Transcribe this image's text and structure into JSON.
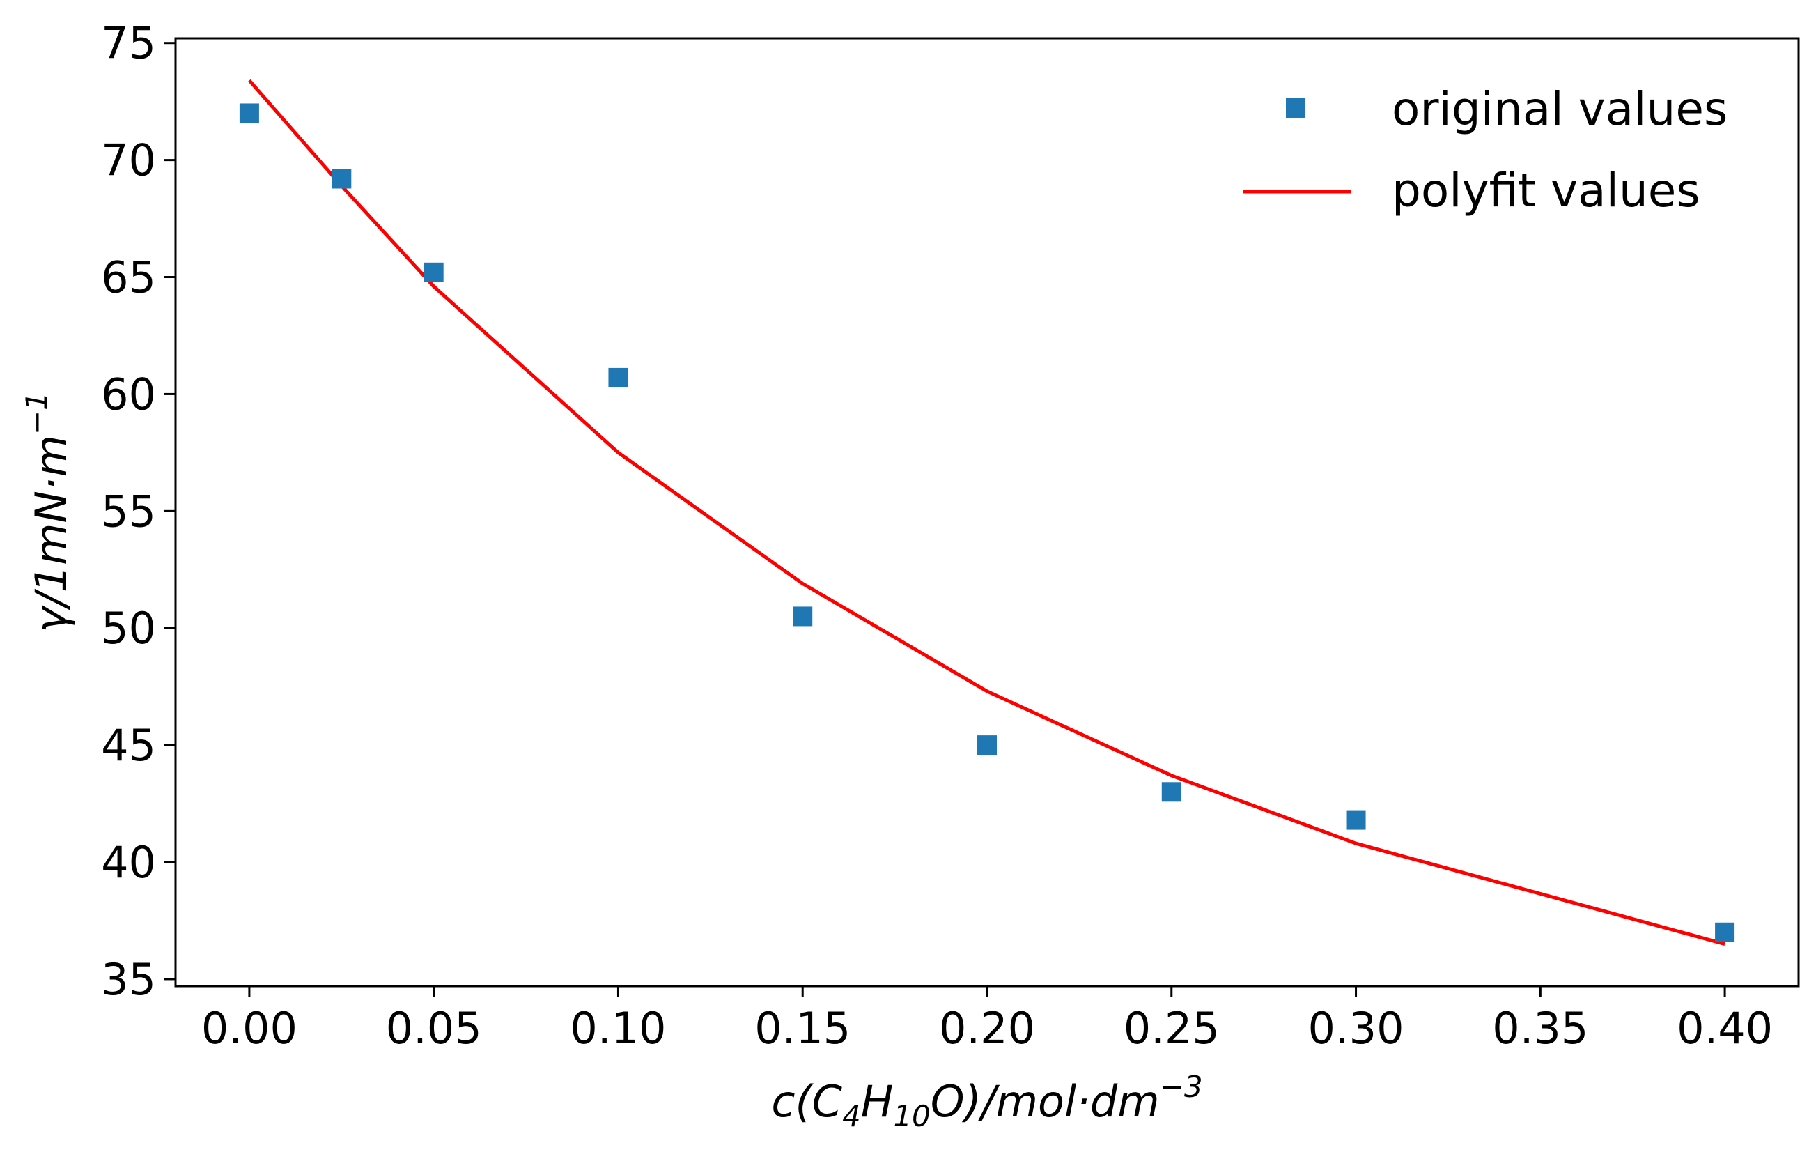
{
  "chart_data": {
    "type": "scatter",
    "xlabel": {
      "parts": [
        "c(C",
        "4",
        "H",
        "10",
        "O)/mol·dm",
        "−3"
      ]
    },
    "ylabel": {
      "parts": [
        "γ/1mN·m",
        "−1"
      ]
    },
    "xlim": [
      -0.02,
      0.42
    ],
    "ylim": [
      34.7,
      75.2
    ],
    "xticks": [
      0.0,
      0.05,
      0.1,
      0.15,
      0.2,
      0.25,
      0.3,
      0.35,
      0.4
    ],
    "xtick_labels": [
      "0.00",
      "0.05",
      "0.10",
      "0.15",
      "0.20",
      "0.25",
      "0.30",
      "0.35",
      "0.40"
    ],
    "yticks": [
      35,
      40,
      45,
      50,
      55,
      60,
      65,
      70,
      75
    ],
    "ytick_labels": [
      "35",
      "40",
      "45",
      "50",
      "55",
      "60",
      "65",
      "70",
      "75"
    ],
    "grid": false,
    "legend_position": "top-right",
    "series": [
      {
        "name": "original values",
        "kind": "scatter",
        "marker": "square",
        "color": "#1f77b4",
        "x": [
          0.0,
          0.025,
          0.05,
          0.1,
          0.15,
          0.2,
          0.25,
          0.3,
          0.4
        ],
        "y": [
          72.0,
          69.2,
          65.2,
          60.7,
          50.5,
          45.0,
          43.0,
          41.8,
          37.0
        ]
      },
      {
        "name": "polyfit values",
        "kind": "line",
        "color": "#ff0000",
        "x": [
          0.0,
          0.025,
          0.05,
          0.1,
          0.15,
          0.2,
          0.25,
          0.3,
          0.4
        ],
        "y": [
          73.4,
          68.9,
          64.6,
          57.5,
          51.9,
          47.3,
          43.7,
          40.8,
          36.5
        ]
      }
    ]
  }
}
